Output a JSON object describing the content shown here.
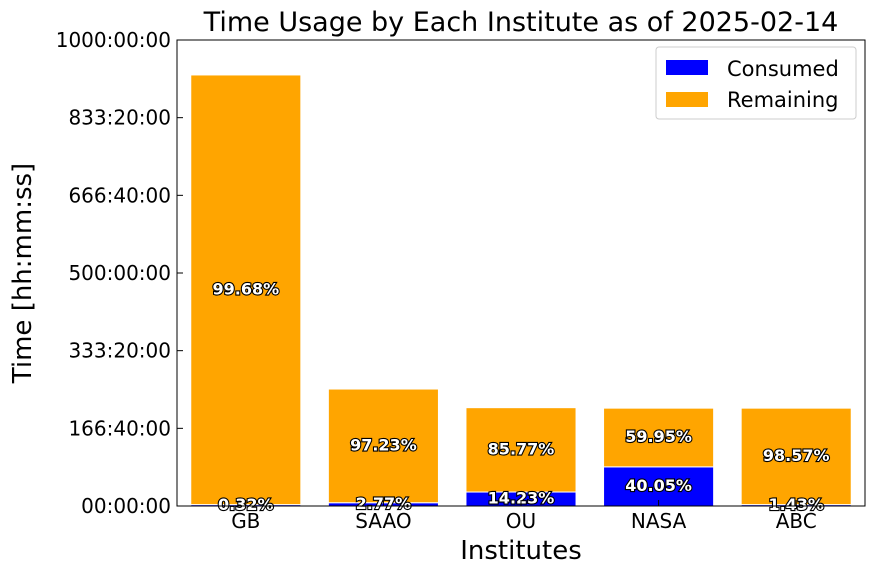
{
  "chart_data": {
    "type": "bar",
    "stacked": true,
    "title": "Time Usage by Each Institute as of 2025-02-14",
    "xlabel": "Institutes",
    "ylabel": "Time [hh:mm:ss]",
    "ylim_hours": [
      0,
      1000
    ],
    "y_ticks": [
      {
        "hours": 0,
        "label": "00:00:00"
      },
      {
        "hours": 166.667,
        "label": "166:40:00"
      },
      {
        "hours": 333.333,
        "label": "333:20:00"
      },
      {
        "hours": 500,
        "label": "500:00:00"
      },
      {
        "hours": 666.667,
        "label": "666:40:00"
      },
      {
        "hours": 833.333,
        "label": "833:20:00"
      },
      {
        "hours": 1000,
        "label": "1000:00:00"
      }
    ],
    "categories": [
      "GB",
      "SAAO",
      "OU",
      "NASA",
      "ABC"
    ],
    "series": [
      {
        "name": "Consumed",
        "color": "#0000ff",
        "values_hours": [
          3,
          7,
          30,
          84,
          3
        ],
        "labels": [
          "0.32%",
          "2.77%",
          "14.23%",
          "40.05%",
          "1.43%"
        ]
      },
      {
        "name": "Remaining",
        "color": "#ffa500",
        "values_hours": [
          922,
          244,
          181,
          126,
          207
        ],
        "labels": [
          "99.68%",
          "97.23%",
          "85.77%",
          "59.95%",
          "98.57%"
        ]
      }
    ],
    "legend_position": "top-right",
    "grid": false
  }
}
